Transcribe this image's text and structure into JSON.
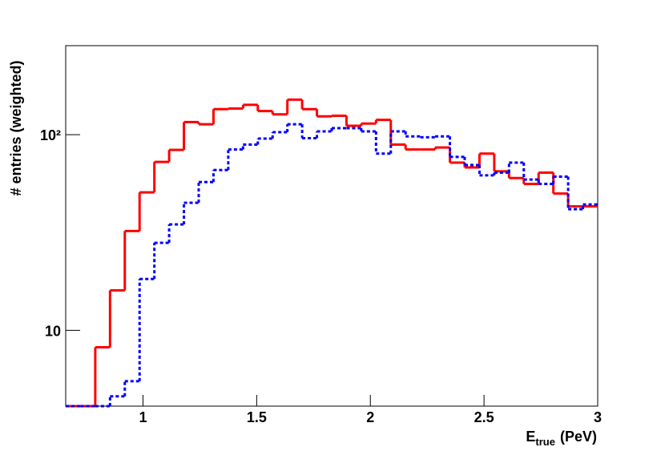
{
  "chart_data": {
    "type": "histogram",
    "xlabel_parts": [
      "E",
      "true",
      "(PeV)"
    ],
    "ylabel": "# entries (weighted)",
    "bins": [
      0.66,
      0.725,
      0.79,
      0.855,
      0.92,
      0.985,
      1.05,
      1.115,
      1.18,
      1.245,
      1.31,
      1.375,
      1.44,
      1.505,
      1.57,
      1.635,
      1.7,
      1.765,
      1.83,
      1.895,
      1.96,
      2.025,
      2.09,
      2.155,
      2.22,
      2.285,
      2.35,
      2.415,
      2.48,
      2.545,
      2.61,
      2.675,
      2.74,
      2.805,
      2.87,
      2.935,
      3.0
    ],
    "series": [
      {
        "color": "#ff0000",
        "dash": "none",
        "values": [
          null,
          null,
          8.2,
          16.0,
          32.2,
          50.7,
          72.6,
          83.6,
          116,
          113,
          135,
          136,
          142,
          132,
          127,
          151,
          135,
          124,
          125,
          111,
          114,
          119,
          89,
          84,
          84,
          86,
          72,
          68,
          80,
          65,
          60,
          56,
          64,
          50,
          43,
          43
        ]
      },
      {
        "color": "#0000ff",
        "dash": "4,3",
        "values": [
          null,
          null,
          null,
          4.6,
          5.5,
          18.3,
          28,
          34.8,
          44.9,
          57.3,
          66,
          84,
          89,
          95.5,
          103,
          113,
          96,
          104,
          108,
          108,
          104,
          80,
          104,
          98,
          97,
          98,
          77,
          70,
          62,
          64,
          72,
          59,
          56,
          61,
          41.6,
          44
        ]
      }
    ],
    "xlim": [
      0.66,
      3.0
    ],
    "ylim": [
      4.1,
      285
    ],
    "log_y": true,
    "xticks": [
      1,
      1.5,
      2,
      2.5,
      3
    ],
    "yticks": [
      10,
      {
        "value": 100,
        "label": "10²"
      }
    ]
  }
}
